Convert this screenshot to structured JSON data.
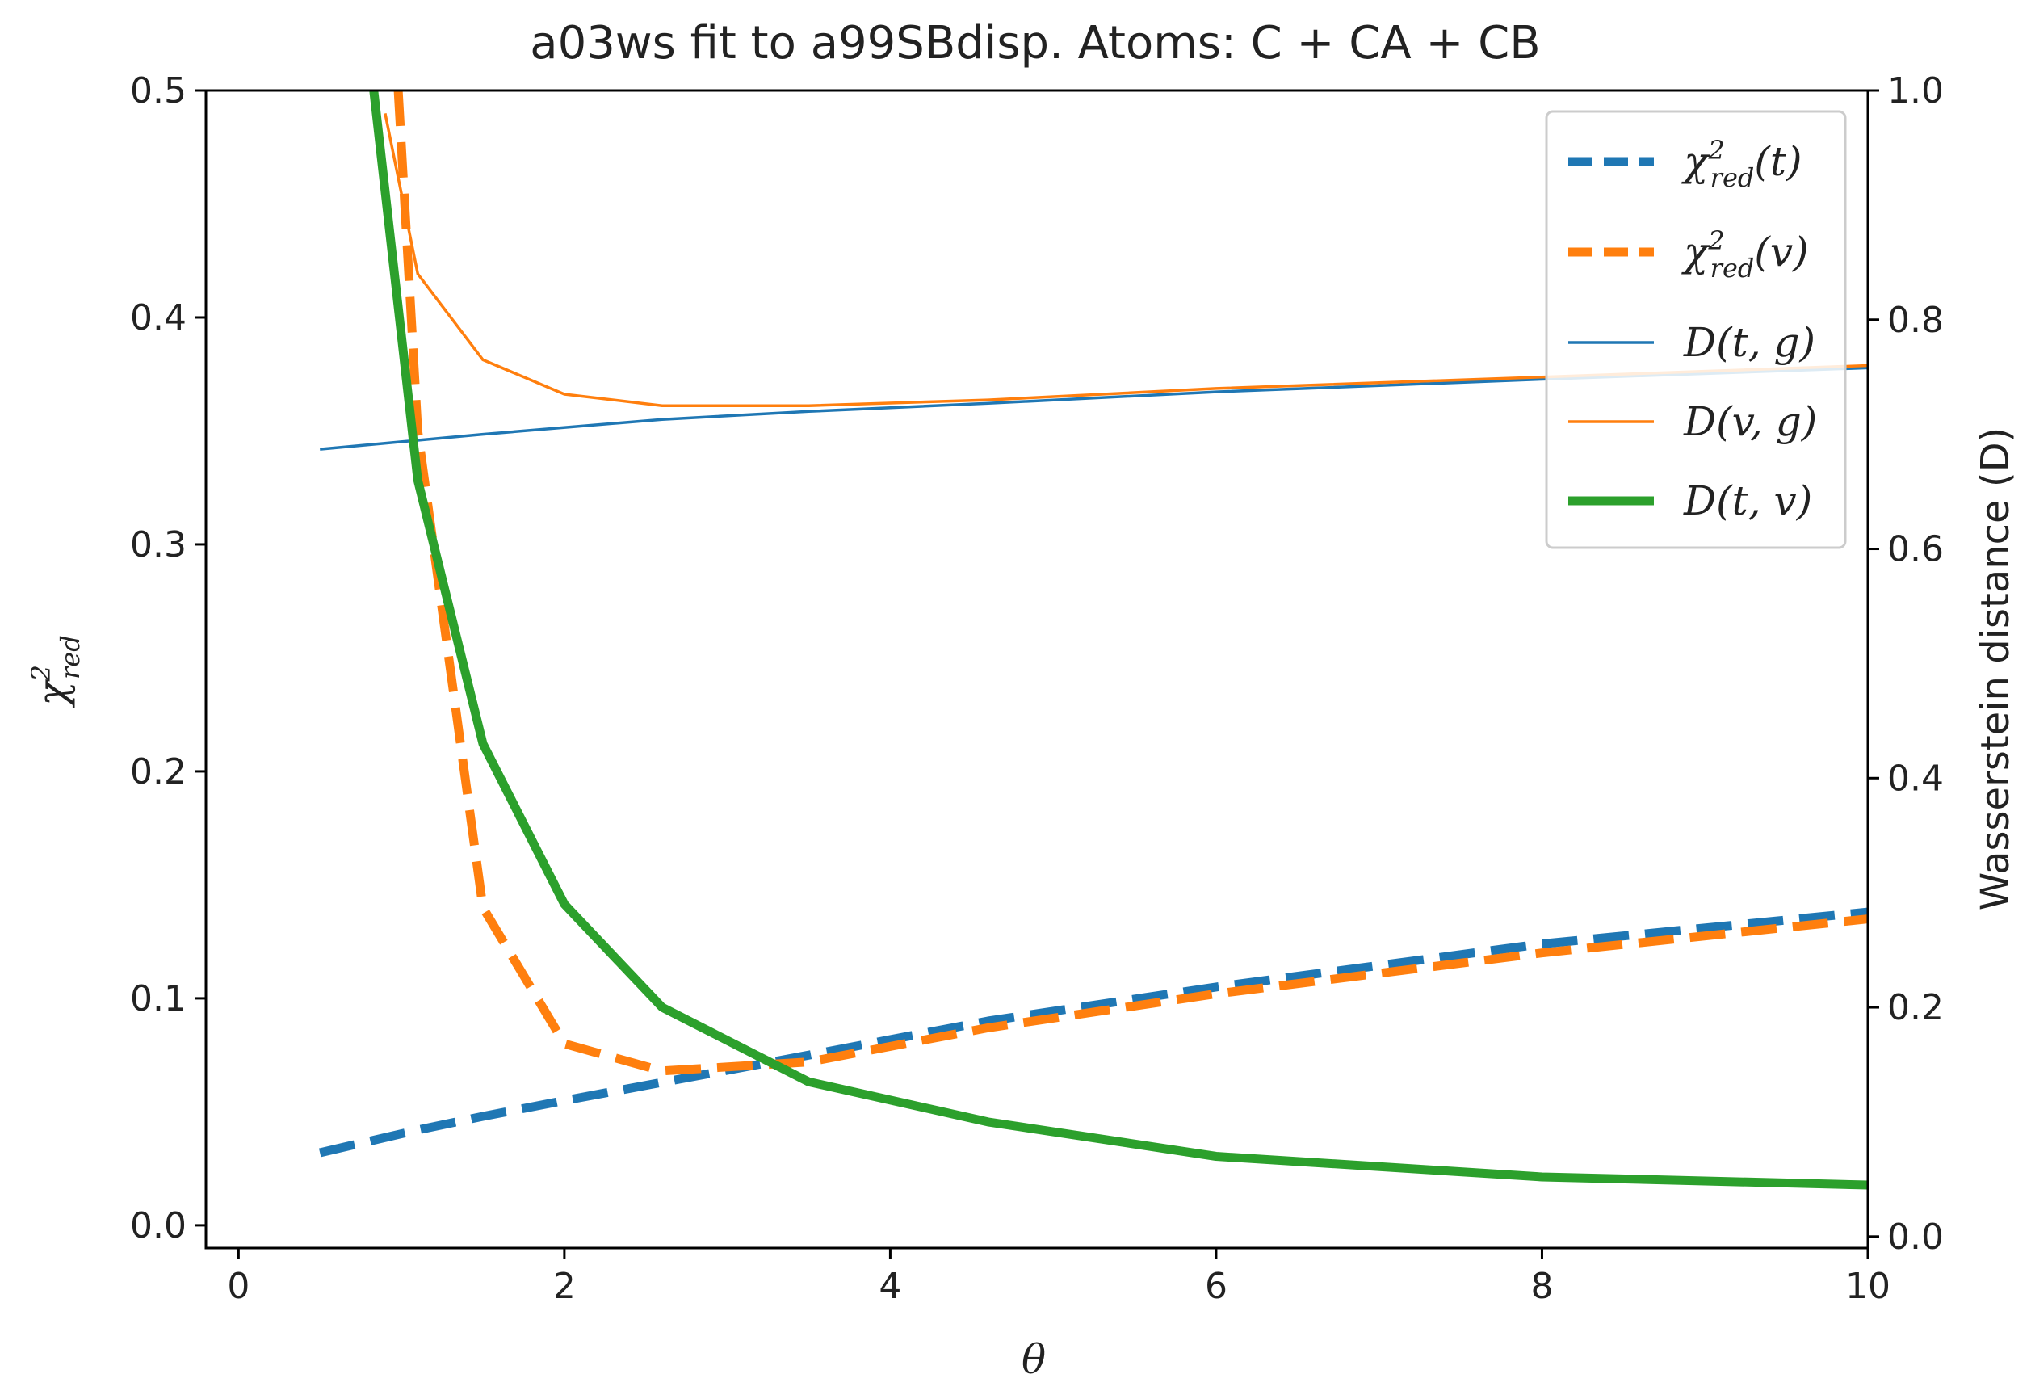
{
  "chart_data": {
    "type": "line",
    "title": "a03ws fit to a99SBdisp. Atoms: C + CA + CB",
    "xlabel": "θ",
    "ylabel_left": {
      "symbol": "χ",
      "sup": "2",
      "sub": "red"
    },
    "ylabel_right": "Wasserstein distance (D)",
    "xlim": [
      -0.2,
      10
    ],
    "ylim_left": [
      -0.01,
      0.5
    ],
    "ylim_right": [
      -0.01,
      1.0
    ],
    "x_ticks": [
      "0",
      "2",
      "4",
      "6",
      "8",
      "10"
    ],
    "y_ticks_left": [
      "0.0",
      "0.1",
      "0.2",
      "0.3",
      "0.4",
      "0.5"
    ],
    "y_ticks_right": [
      "0.0",
      "0.2",
      "0.4",
      "0.6",
      "0.8",
      "1.0"
    ],
    "grid": false,
    "legend_position": "top-right",
    "series": [
      {
        "name": "χ²red(t)",
        "legend": {
          "symbol": "χ",
          "sup": "2",
          "sub": "red",
          "arg": "(t)"
        },
        "axis": "left",
        "color": "#1f77b4",
        "style": "dashed",
        "width": "thick",
        "x": [
          0.5,
          0.8,
          1.1,
          1.5,
          2.0,
          2.6,
          3.5,
          4.6,
          6.0,
          8.0,
          10.0
        ],
        "y": [
          0.032,
          0.037,
          0.042,
          0.048,
          0.055,
          0.063,
          0.075,
          0.09,
          0.105,
          0.124,
          0.138
        ]
      },
      {
        "name": "χ²red(v)",
        "legend": {
          "symbol": "χ",
          "sup": "2",
          "sub": "red",
          "arg": "(v)"
        },
        "axis": "left",
        "color": "#ff7f0e",
        "style": "dashed",
        "width": "thick",
        "x": [
          0.98,
          1.1,
          1.5,
          2.0,
          2.6,
          3.5,
          4.6,
          6.0,
          8.0,
          10.0
        ],
        "y": [
          0.5,
          0.35,
          0.14,
          0.08,
          0.068,
          0.072,
          0.087,
          0.102,
          0.12,
          0.135
        ]
      },
      {
        "name": "D(t, g)",
        "legend": {
          "text": "D(t, g)"
        },
        "axis": "right",
        "color": "#1f77b4",
        "style": "solid",
        "width": "thin",
        "x": [
          0.5,
          1.5,
          2.6,
          3.5,
          4.6,
          6.0,
          8.0,
          10.0
        ],
        "y": [
          0.687,
          0.7,
          0.713,
          0.72,
          0.727,
          0.737,
          0.748,
          0.758
        ]
      },
      {
        "name": "D(v, g)",
        "legend": {
          "text": "D(v, g)"
        },
        "axis": "right",
        "color": "#ff7f0e",
        "style": "solid",
        "width": "thin",
        "x": [
          0.9,
          1.1,
          1.5,
          2.0,
          2.6,
          3.5,
          4.6,
          6.0,
          8.0,
          10.0
        ],
        "y": [
          0.98,
          0.84,
          0.765,
          0.735,
          0.725,
          0.725,
          0.73,
          0.74,
          0.75,
          0.76
        ]
      },
      {
        "name": "D(t, v)",
        "legend": {
          "text": "D(t, v)"
        },
        "axis": "right",
        "color": "#2ca02c",
        "style": "solid",
        "width": "thick",
        "x": [
          0.83,
          1.1,
          1.5,
          2.0,
          2.6,
          3.5,
          4.6,
          6.0,
          8.0,
          10.0
        ],
        "y": [
          1.0,
          0.66,
          0.43,
          0.29,
          0.2,
          0.135,
          0.1,
          0.07,
          0.052,
          0.045
        ]
      }
    ]
  }
}
